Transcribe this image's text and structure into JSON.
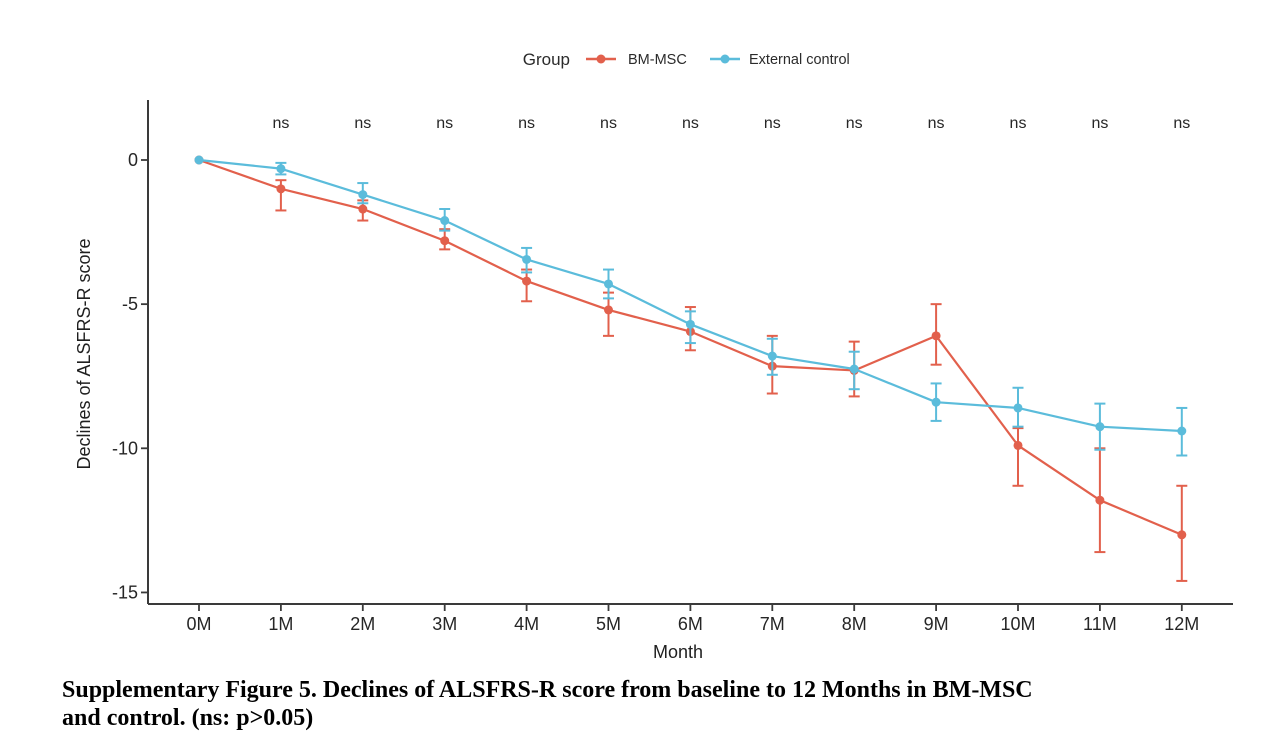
{
  "legend": {
    "title": "Group",
    "items": [
      {
        "label": "BM-MSC",
        "color": "#E2604C"
      },
      {
        "label": "External control",
        "color": "#5BBCDB"
      }
    ]
  },
  "chart_data": {
    "type": "line",
    "title": "",
    "xlabel": "Month",
    "ylabel": "Declines of ALSFRS-R score",
    "categories": [
      0,
      1,
      2,
      3,
      4,
      5,
      6,
      7,
      8,
      9,
      10,
      11,
      12
    ],
    "x_tick_labels": [
      "0M",
      "1M",
      "2M",
      "3M",
      "4M",
      "5M",
      "6M",
      "7M",
      "8M",
      "9M",
      "10M",
      "11M",
      "12M"
    ],
    "y_ticks": [
      0,
      -5,
      -10,
      -15
    ],
    "y_tick_labels": [
      "0",
      "-5",
      "-10",
      "-15"
    ],
    "ylim": [
      -15.6,
      1.0
    ],
    "grid": false,
    "legend_position": "top",
    "annotations": [
      {
        "month": 1,
        "text": "ns"
      },
      {
        "month": 2,
        "text": "ns"
      },
      {
        "month": 3,
        "text": "ns"
      },
      {
        "month": 4,
        "text": "ns"
      },
      {
        "month": 5,
        "text": "ns"
      },
      {
        "month": 6,
        "text": "ns"
      },
      {
        "month": 7,
        "text": "ns"
      },
      {
        "month": 8,
        "text": "ns"
      },
      {
        "month": 9,
        "text": "ns"
      },
      {
        "month": 10,
        "text": "ns"
      },
      {
        "month": 11,
        "text": "ns"
      },
      {
        "month": 12,
        "text": "ns"
      }
    ],
    "series": [
      {
        "name": "BM-MSC",
        "color": "#E2604C",
        "values": [
          0,
          -1.0,
          -1.7,
          -2.8,
          -4.2,
          -5.2,
          -5.95,
          -7.15,
          -7.3,
          -6.1,
          -9.9,
          -11.8,
          -13.0
        ],
        "err_high": [
          null,
          -0.7,
          -1.4,
          -2.4,
          -3.8,
          -4.6,
          -5.1,
          -6.1,
          -6.3,
          -5.0,
          -9.3,
          -10.0,
          -11.3
        ],
        "err_low": [
          null,
          -1.75,
          -2.1,
          -3.1,
          -4.9,
          -6.1,
          -6.6,
          -8.1,
          -8.2,
          -7.1,
          -11.3,
          -13.6,
          -14.6
        ]
      },
      {
        "name": "External control",
        "color": "#5BBCDB",
        "values": [
          0,
          -0.3,
          -1.2,
          -2.1,
          -3.45,
          -4.3,
          -5.7,
          -6.8,
          -7.25,
          -8.4,
          -8.6,
          -9.25,
          -9.4
        ],
        "err_high": [
          null,
          -0.1,
          -0.8,
          -1.7,
          -3.05,
          -3.8,
          -5.25,
          -6.2,
          -6.65,
          -7.75,
          -7.9,
          -8.45,
          -8.6
        ],
        "err_low": [
          null,
          -0.5,
          -1.5,
          -2.45,
          -3.9,
          -4.8,
          -6.35,
          -7.45,
          -7.95,
          -9.05,
          -9.25,
          -10.05,
          -10.25
        ]
      }
    ]
  },
  "caption": {
    "line1": "Supplementary Figure 5. Declines of ALSFRS-R score from baseline to 12 Months in BM-MSC",
    "line2": "and control. (ns: p>0.05)"
  }
}
